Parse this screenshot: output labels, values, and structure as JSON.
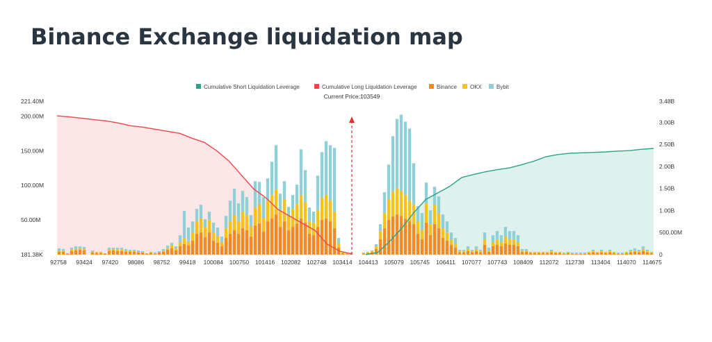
{
  "page": {
    "title": "Binance Exchange liquidation map"
  },
  "chart_data": {
    "type": "bar",
    "stacked": true,
    "title": "Binance Exchange liquidation map",
    "legend": {
      "placement": "top-center",
      "items": [
        {
          "name": "Cumulative Short Liquidation Leverage",
          "color": "#2aa38b"
        },
        {
          "name": "Cumulative Long Liquidation Leverage",
          "color": "#f0444b"
        },
        {
          "name": "Binance",
          "color": "#f7891f"
        },
        {
          "name": "OKX",
          "color": "#f9c21a"
        },
        {
          "name": "Bybit",
          "color": "#8fd0d6"
        }
      ]
    },
    "current_price_label": "Current Price:103549",
    "current_price": 103549,
    "x_ticks": [
      "92758",
      "93424",
      "97420",
      "98086",
      "98752",
      "99418",
      "100084",
      "100750",
      "101416",
      "102082",
      "102748",
      "103414",
      "104413",
      "105079",
      "105745",
      "106411",
      "107077",
      "107743",
      "108409",
      "112072",
      "112738",
      "113404",
      "114070",
      "114675"
    ],
    "x_range": [
      92758,
      114675
    ],
    "left_axis": {
      "ticks": [
        "181.38K",
        "50.00M",
        "100.00M",
        "150.00M",
        "200.00M",
        "221.40M"
      ],
      "range_M": [
        0.18,
        221.4
      ]
    },
    "right_axis": {
      "ticks": [
        "0",
        "500.00M",
        "1.00B",
        "1.50B",
        "2.00B",
        "2.50B",
        "3.00B",
        "3.48B"
      ],
      "range_B": [
        0,
        3.48
      ]
    },
    "bar_series_M": {
      "binance": [
        4,
        4,
        1,
        5,
        6,
        7,
        6,
        0,
        3,
        2,
        2,
        1,
        5,
        6,
        5,
        5,
        4,
        4,
        4,
        3,
        3,
        1,
        2,
        1,
        3,
        4,
        7,
        9,
        6,
        12,
        15,
        13,
        20,
        30,
        32,
        25,
        32,
        20,
        17,
        12,
        24,
        30,
        35,
        30,
        38,
        35,
        26,
        42,
        45,
        33,
        48,
        52,
        58,
        40,
        48,
        35,
        40,
        45,
        52,
        46,
        30,
        28,
        40,
        50,
        52,
        48,
        38,
        10,
        2,
        1,
        1,
        0,
        0,
        1,
        2,
        3,
        8,
        22,
        38,
        50,
        55,
        58,
        56,
        52,
        48,
        44,
        30,
        22,
        46,
        28,
        44,
        38,
        24,
        20,
        14,
        10,
        3,
        3,
        5,
        3,
        5,
        3,
        14,
        4,
        12,
        14,
        12,
        16,
        14,
        14,
        12,
        4,
        4,
        2,
        2,
        2,
        2,
        2,
        3,
        2,
        2,
        1,
        2,
        1,
        1,
        1,
        1,
        2,
        3,
        2,
        3,
        2,
        3,
        2,
        1,
        1,
        2,
        3,
        4,
        3,
        5,
        3,
        2
      ],
      "okx": [
        1,
        1,
        0,
        2,
        2,
        2,
        2,
        0,
        1,
        1,
        1,
        0,
        2,
        2,
        2,
        2,
        2,
        1,
        1,
        1,
        1,
        0,
        1,
        1,
        1,
        2,
        3,
        4,
        3,
        6,
        8,
        6,
        12,
        18,
        20,
        14,
        18,
        12,
        10,
        6,
        14,
        18,
        22,
        18,
        24,
        22,
        15,
        26,
        28,
        20,
        30,
        34,
        36,
        24,
        32,
        22,
        26,
        28,
        34,
        30,
        18,
        18,
        24,
        32,
        34,
        30,
        24,
        6,
        1,
        1,
        1,
        0,
        0,
        1,
        1,
        2,
        4,
        12,
        22,
        30,
        36,
        38,
        36,
        34,
        30,
        28,
        18,
        14,
        28,
        16,
        28,
        22,
        14,
        12,
        8,
        6,
        2,
        2,
        3,
        2,
        3,
        2,
        8,
        2,
        6,
        8,
        6,
        10,
        8,
        8,
        6,
        2,
        2,
        1,
        1,
        1,
        1,
        1,
        2,
        1,
        1,
        1,
        1,
        1,
        1,
        1,
        1,
        1,
        2,
        1,
        2,
        1,
        2,
        1,
        1,
        1,
        1,
        2,
        2,
        2,
        3,
        2,
        1
      ],
      "bybit": [
        4,
        3,
        1,
        3,
        4,
        3,
        3,
        0,
        2,
        1,
        1,
        1,
        3,
        2,
        3,
        3,
        2,
        2,
        2,
        2,
        1,
        1,
        1,
        1,
        1,
        2,
        3,
        4,
        3,
        10,
        40,
        20,
        16,
        18,
        20,
        12,
        12,
        14,
        12,
        8,
        18,
        30,
        38,
        26,
        30,
        26,
        16,
        38,
        32,
        30,
        32,
        48,
        64,
        24,
        26,
        12,
        20,
        28,
        66,
        46,
        20,
        16,
        50,
        66,
        78,
        80,
        92,
        8,
        1,
        1,
        1,
        0,
        0,
        1,
        1,
        1,
        3,
        10,
        30,
        50,
        80,
        100,
        110,
        106,
        104,
        60,
        22,
        24,
        30,
        20,
        26,
        24,
        20,
        16,
        10,
        8,
        2,
        2,
        4,
        2,
        4,
        2,
        10,
        4,
        10,
        12,
        10,
        14,
        12,
        12,
        10,
        2,
        2,
        1,
        1,
        1,
        1,
        1,
        2,
        1,
        1,
        1,
        1,
        1,
        1,
        1,
        1,
        1,
        2,
        1,
        2,
        1,
        2,
        1,
        1,
        1,
        1,
        2,
        3,
        2,
        4,
        2,
        1
      ]
    },
    "cumulative_long_M": [
      200.5,
      199,
      197,
      195,
      193,
      190,
      186,
      184,
      181,
      178,
      175,
      168,
      162,
      150,
      135,
      115,
      95,
      82,
      65,
      55,
      45,
      35,
      15,
      5,
      1
    ],
    "cumulative_short_B": [
      0,
      0.05,
      0.3,
      0.6,
      0.95,
      1.25,
      1.4,
      1.55,
      1.75,
      1.82,
      1.88,
      1.93,
      1.97,
      2.04,
      2.12,
      2.22,
      2.27,
      2.3,
      2.31,
      2.32,
      2.33,
      2.35,
      2.36,
      2.39,
      2.41
    ]
  }
}
